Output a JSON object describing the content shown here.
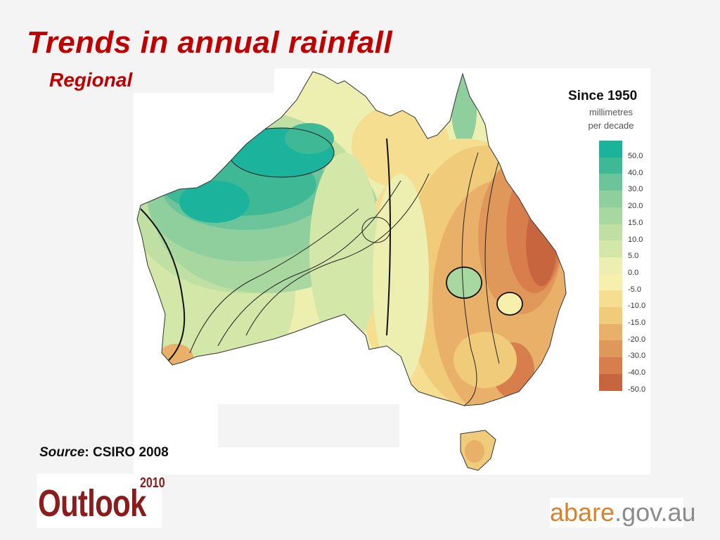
{
  "slide": {
    "title": "Trends in annual rainfall",
    "subtitle": "Regional"
  },
  "map": {
    "period_label": "Since 1950",
    "units_line1": "millimetres",
    "units_line2": "per decade",
    "legend": [
      {
        "label": "50.0",
        "color": "#1bb39c"
      },
      {
        "label": "40.0",
        "color": "#3fb896"
      },
      {
        "label": "30.0",
        "color": "#6cc49a"
      },
      {
        "label": "20.0",
        "color": "#8fcf9e"
      },
      {
        "label": "15.0",
        "color": "#a8d89f"
      },
      {
        "label": "10.0",
        "color": "#bfe0a2"
      },
      {
        "label": "5.0",
        "color": "#d3e7a8"
      },
      {
        "label": "0.0",
        "color": "#ecefb0"
      },
      {
        "label": "-5.0",
        "color": "#f7efac"
      },
      {
        "label": "-10.0",
        "color": "#f5de8f"
      },
      {
        "label": "-15.0",
        "color": "#f0cc7a"
      },
      {
        "label": "-20.0",
        "color": "#e9b06a"
      },
      {
        "label": "-30.0",
        "color": "#e0975a"
      },
      {
        "label": "-40.0",
        "color": "#d77e4c"
      },
      {
        "label": "-50.0",
        "color": "#c7653e"
      }
    ]
  },
  "source": {
    "prefix": "Source",
    "text": ": CSIRO 2008"
  },
  "logos": {
    "outlook_word": "Outlook",
    "outlook_year": "2010",
    "abare_name": "abare",
    "abare_domain": ".gov.au"
  },
  "colors": {
    "title": "#c00000",
    "outlook": "#8b1c1c",
    "abare_orange": "#d9822b",
    "abare_grey": "#8c8c8c"
  }
}
